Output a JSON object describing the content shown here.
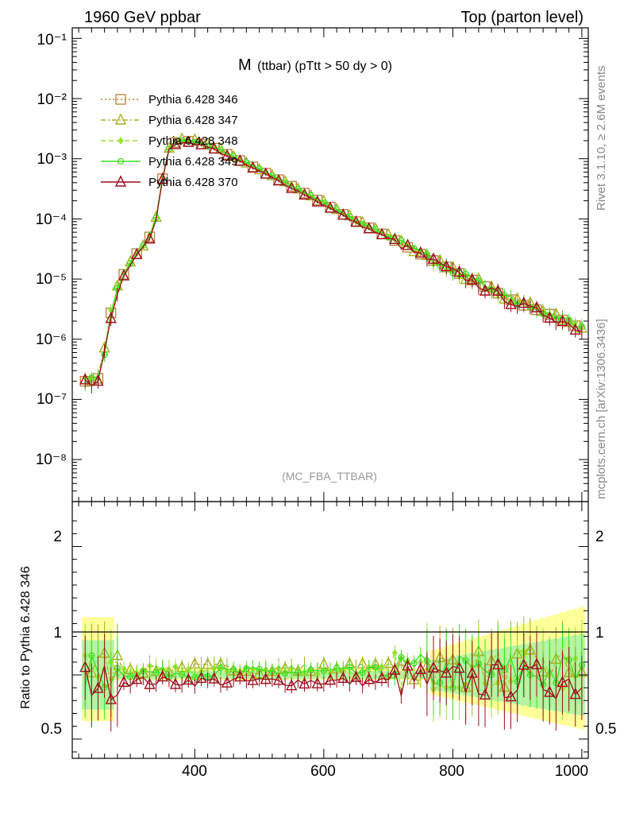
{
  "header": {
    "left": "1960 GeV ppbar",
    "right": "Top (parton level)"
  },
  "side_text": {
    "rivet": "Rivet 3.1.10, ≥ 2.6M events",
    "mcplots": "mcplots.cern.ch [arXiv:1306.3436]"
  },
  "chart_data": [
    {
      "type": "line",
      "title_main": "M",
      "title_sub": "(ttbar) (pTtt > 50 dy > 0)",
      "watermark": "(MC_FBA_TTBAR)",
      "y_scale": "log",
      "xlim": [
        210,
        1010
      ],
      "ylim": [
        2e-09,
        0.15
      ],
      "y_tick_labels": [
        "10⁻⁸",
        "10⁻⁷",
        "10⁻⁶",
        "10⁻⁵",
        "10⁻⁴",
        "10⁻³",
        "10⁻²",
        "10⁻¹"
      ],
      "legend_position": "top-left",
      "series": [
        {
          "name": "Pythia 6.428 346",
          "color": "#b5803a",
          "marker": "square-open",
          "line": "dotted"
        },
        {
          "name": "Pythia 6.428 347",
          "color": "#a8b020",
          "marker": "triangle-open",
          "line": "dash-dot"
        },
        {
          "name": "Pythia 6.428 348",
          "color": "#9ee03a",
          "marker": "diamond",
          "line": "dashed"
        },
        {
          "name": "Pythia 6.428 349",
          "color": "#3fe01f",
          "marker": "circle-cross",
          "line": "solid"
        },
        {
          "name": "Pythia 6.428 370",
          "color": "#9b0f1e",
          "marker": "triangle-open",
          "line": "solid"
        }
      ],
      "shape_points": {
        "x": [
          230,
          245,
          255,
          265,
          275,
          290,
          305,
          320,
          335,
          345,
          355,
          365,
          380,
          400,
          430,
          460,
          500,
          550,
          600,
          650,
          700,
          750,
          800,
          850,
          900,
          950,
          1000
        ],
        "y": [
          2e-07,
          2e-07,
          2.5e-07,
          1.5e-06,
          5e-06,
          1.2e-05,
          2.3e-05,
          3.5e-05,
          6e-05,
          0.00018,
          0.0012,
          0.0018,
          0.002,
          0.0019,
          0.0015,
          0.00105,
          0.00065,
          0.00035,
          0.00018,
          9e-05,
          5e-05,
          2.6e-05,
          1.4e-05,
          7.5e-06,
          4e-06,
          2.6e-06,
          1.5e-06
        ]
      }
    },
    {
      "type": "line",
      "ylabel": "Ratio to Pythia 6.428 346",
      "xlim": [
        210,
        1010
      ],
      "ylim": [
        0.35,
        2.35
      ],
      "x_ticks": [
        400,
        600,
        800,
        1000
      ],
      "y_ticks": [
        0.5,
        1,
        2
      ],
      "x_tick_labels": [
        "400",
        "600",
        "800",
        "1000"
      ],
      "y_tick_labels": [
        "0.5",
        "1",
        "2"
      ],
      "reference_line": 1
    }
  ]
}
